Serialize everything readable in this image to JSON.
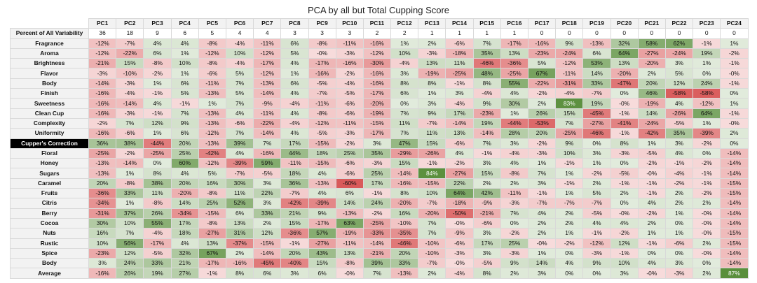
{
  "chart_data": {
    "type": "table",
    "title": "PCA by all but Total Cupping Score",
    "columns": [
      "PC1",
      "PC2",
      "PC3",
      "PC4",
      "PC5",
      "PC6",
      "PC7",
      "PC8",
      "PC9",
      "PC10",
      "PC11",
      "PC12",
      "PC13",
      "PC14",
      "PC15",
      "PC16",
      "PC17",
      "PC18",
      "PC19",
      "PC20",
      "PC21",
      "PC22",
      "PC23",
      "PC24"
    ],
    "rows": [
      {
        "label": "Percent of All Variability",
        "kind": "plain",
        "values": [
          "36",
          "18",
          "9",
          "6",
          "5",
          "4",
          "4",
          "3",
          "3",
          "3",
          "2",
          "2",
          "1",
          "1",
          "1",
          "1",
          "0",
          "0",
          "0",
          "0",
          "0",
          "0",
          "0",
          "0"
        ]
      },
      {
        "label": "Fragrance",
        "kind": "heat",
        "values": [
          "-12%",
          "-7%",
          "4%",
          "4%",
          "-8%",
          "-4%",
          "-11%",
          "6%",
          "-8%",
          "-11%",
          "-16%",
          "1%",
          "2%",
          "-6%",
          "7%",
          "-17%",
          "-16%",
          "9%",
          "-13%",
          "32%",
          "58%",
          "62%",
          "-1%",
          "1%"
        ]
      },
      {
        "label": "Aroma",
        "kind": "heat",
        "values": [
          "-12%",
          "-22%",
          "6%",
          "1%",
          "-12%",
          "10%",
          "-12%",
          "5%",
          "-0%",
          "-3%",
          "-12%",
          "10%",
          "-3%",
          "-18%",
          "35%",
          "13%",
          "-23%",
          "-24%",
          "6%",
          "64%",
          "-27%",
          "-24%",
          "19%",
          "-2%"
        ]
      },
      {
        "label": "Brightness",
        "kind": "heat",
        "values": [
          "-21%",
          "15%",
          "-8%",
          "10%",
          "-8%",
          "-4%",
          "-17%",
          "4%",
          "-17%",
          "-16%",
          "-30%",
          "-4%",
          "13%",
          "11%",
          "-46%",
          "-36%",
          "5%",
          "-12%",
          "53%",
          "13%",
          "-20%",
          "3%",
          "1%",
          "-1%"
        ]
      },
      {
        "label": "Flavor",
        "kind": "heat",
        "values": [
          "-3%",
          "-10%",
          "-2%",
          "1%",
          "-6%",
          "5%",
          "-12%",
          "1%",
          "-16%",
          "-2%",
          "-16%",
          "3%",
          "-19%",
          "-25%",
          "48%",
          "-25%",
          "67%",
          "-11%",
          "14%",
          "-20%",
          "2%",
          "5%",
          "0%",
          "-0%"
        ]
      },
      {
        "label": "Body",
        "kind": "heat",
        "values": [
          "-14%",
          "-3%",
          "1%",
          "6%",
          "-11%",
          "7%",
          "-13%",
          "6%",
          "-5%",
          "-4%",
          "-16%",
          "8%",
          "8%",
          "-1%",
          "8%",
          "55%",
          "-22%",
          "-31%",
          "33%",
          "-47%",
          "20%",
          "12%",
          "24%",
          "-1%"
        ]
      },
      {
        "label": "Finish",
        "kind": "heat",
        "values": [
          "-16%",
          "-4%",
          "-1%",
          "5%",
          "-13%",
          "5%",
          "-14%",
          "4%",
          "-7%",
          "-5%",
          "-17%",
          "6%",
          "1%",
          "3%",
          "-4%",
          "4%",
          "-2%",
          "-4%",
          "-7%",
          "0%",
          "46%",
          "-58%",
          "-58%",
          "0%"
        ]
      },
      {
        "label": "Sweetness",
        "kind": "heat",
        "values": [
          "-16%",
          "-14%",
          "4%",
          "-1%",
          "1%",
          "7%",
          "-9%",
          "-4%",
          "-11%",
          "-6%",
          "-20%",
          "0%",
          "3%",
          "-4%",
          "9%",
          "30%",
          "2%",
          "83%",
          "19%",
          "-0%",
          "-19%",
          "4%",
          "-12%",
          "1%"
        ]
      },
      {
        "label": "Clean Cup",
        "kind": "heat",
        "values": [
          "-16%",
          "-3%",
          "-1%",
          "7%",
          "-13%",
          "4%",
          "-11%",
          "4%",
          "-8%",
          "-6%",
          "-19%",
          "7%",
          "9%",
          "17%",
          "-23%",
          "1%",
          "26%",
          "15%",
          "-45%",
          "-1%",
          "14%",
          "-26%",
          "64%",
          "-1%"
        ]
      },
      {
        "label": "Complexity",
        "kind": "heat",
        "values": [
          "-2%",
          "7%",
          "12%",
          "9%",
          "-13%",
          "-6%",
          "-22%",
          "-4%",
          "-12%",
          "-11%",
          "-15%",
          "11%",
          "-7%",
          "-14%",
          "19%",
          "-44%",
          "-53%",
          "7%",
          "-27%",
          "-41%",
          "-24%",
          "-5%",
          "1%",
          "-0%"
        ]
      },
      {
        "label": "Uniformity",
        "kind": "heat",
        "values": [
          "-16%",
          "-6%",
          "1%",
          "6%",
          "-12%",
          "7%",
          "-14%",
          "4%",
          "-5%",
          "-3%",
          "-17%",
          "7%",
          "11%",
          "13%",
          "-14%",
          "28%",
          "20%",
          "-25%",
          "-46%",
          "-1%",
          "-42%",
          "35%",
          "-39%",
          "2%"
        ]
      },
      {
        "label": "Cupper's Correction",
        "kind": "heat",
        "dark": true,
        "values": [
          "36%",
          "38%",
          "-44%",
          "20%",
          "-13%",
          "39%",
          "7%",
          "17%",
          "-15%",
          "-2%",
          "3%",
          "47%",
          "15%",
          "-6%",
          "7%",
          "3%",
          "-2%",
          "9%",
          "0%",
          "8%",
          "1%",
          "3%",
          "-2%",
          "0%"
        ]
      },
      {
        "label": "Floral",
        "kind": "heat",
        "values": [
          "-25%",
          "-2%",
          "-25%",
          "25%",
          "-42%",
          "4%",
          "-16%",
          "44%",
          "18%",
          "25%",
          "35%",
          "-29%",
          "-26%",
          "4%",
          "-1%",
          "-4%",
          "-3%",
          "10%",
          "3%",
          "-3%",
          "-5%",
          "4%",
          "0%",
          "-14%"
        ]
      },
      {
        "label": "Honey",
        "kind": "heat",
        "values": [
          "-13%",
          "-14%",
          "0%",
          "60%",
          "-12%",
          "-39%",
          "59%",
          "-11%",
          "-15%",
          "-6%",
          "-3%",
          "15%",
          "-1%",
          "-2%",
          "3%",
          "4%",
          "1%",
          "-1%",
          "1%",
          "0%",
          "-2%",
          "-1%",
          "-2%",
          "-14%"
        ]
      },
      {
        "label": "Sugars",
        "kind": "heat",
        "values": [
          "-13%",
          "1%",
          "8%",
          "4%",
          "5%",
          "-7%",
          "-5%",
          "18%",
          "4%",
          "-6%",
          "25%",
          "-14%",
          "84%",
          "-27%",
          "15%",
          "-8%",
          "7%",
          "1%",
          "-2%",
          "-5%",
          "-0%",
          "-4%",
          "-1%",
          "-14%"
        ]
      },
      {
        "label": "Caramel",
        "kind": "heat",
        "values": [
          "20%",
          "-8%",
          "38%",
          "20%",
          "16%",
          "30%",
          "3%",
          "36%",
          "-13%",
          "-60%",
          "17%",
          "-16%",
          "-15%",
          "22%",
          "2%",
          "2%",
          "3%",
          "-1%",
          "2%",
          "-1%",
          "-1%",
          "-2%",
          "-1%",
          "-15%"
        ]
      },
      {
        "label": "Fruits",
        "kind": "heat",
        "values": [
          "-36%",
          "33%",
          "11%",
          "-20%",
          "-8%",
          "11%",
          "22%",
          "-7%",
          "4%",
          "6%",
          "-1%",
          "8%",
          "10%",
          "64%",
          "42%",
          "-11%",
          "-1%",
          "1%",
          "5%",
          "2%",
          "-1%",
          "2%",
          "-2%",
          "-15%"
        ]
      },
      {
        "label": "Citris",
        "kind": "heat",
        "values": [
          "-34%",
          "1%",
          "-8%",
          "14%",
          "25%",
          "52%",
          "3%",
          "-42%",
          "-39%",
          "14%",
          "24%",
          "-20%",
          "-7%",
          "-18%",
          "-9%",
          "-3%",
          "-7%",
          "-7%",
          "-7%",
          "0%",
          "4%",
          "2%",
          "2%",
          "-14%"
        ]
      },
      {
        "label": "Berry",
        "kind": "heat",
        "values": [
          "-31%",
          "37%",
          "26%",
          "-34%",
          "-15%",
          "6%",
          "33%",
          "21%",
          "9%",
          "-13%",
          "-2%",
          "16%",
          "-20%",
          "-50%",
          "-21%",
          "7%",
          "4%",
          "2%",
          "-5%",
          "-0%",
          "-2%",
          "1%",
          "-0%",
          "-14%"
        ]
      },
      {
        "label": "Cocoa",
        "kind": "heat",
        "values": [
          "30%",
          "10%",
          "55%",
          "17%",
          "-8%",
          "13%",
          "2%",
          "15%",
          "-17%",
          "63%",
          "-25%",
          "-10%",
          "7%",
          "-0%",
          "-6%",
          "0%",
          "2%",
          "2%",
          "4%",
          "4%",
          "2%",
          "0%",
          "-0%",
          "-14%"
        ]
      },
      {
        "label": "Nuts",
        "kind": "heat",
        "values": [
          "16%",
          "7%",
          "-4%",
          "18%",
          "-27%",
          "31%",
          "12%",
          "-36%",
          "57%",
          "-19%",
          "-33%",
          "-35%",
          "7%",
          "-9%",
          "3%",
          "-2%",
          "2%",
          "1%",
          "-1%",
          "-2%",
          "1%",
          "1%",
          "-0%",
          "-15%"
        ]
      },
      {
        "label": "Rustic",
        "kind": "heat",
        "values": [
          "10%",
          "56%",
          "-17%",
          "4%",
          "13%",
          "-37%",
          "-15%",
          "-1%",
          "-27%",
          "-11%",
          "-14%",
          "-46%",
          "-10%",
          "-6%",
          "17%",
          "25%",
          "-0%",
          "-2%",
          "-12%",
          "12%",
          "-1%",
          "-6%",
          "2%",
          "-15%"
        ]
      },
      {
        "label": "Spice",
        "kind": "heat",
        "values": [
          "-23%",
          "12%",
          "-5%",
          "32%",
          "67%",
          "2%",
          "-14%",
          "20%",
          "43%",
          "13%",
          "-21%",
          "20%",
          "-10%",
          "-3%",
          "3%",
          "-3%",
          "1%",
          "0%",
          "-3%",
          "-1%",
          "0%",
          "0%",
          "-0%",
          "-14%"
        ]
      },
      {
        "label": "Body",
        "kind": "heat",
        "values": [
          "3%",
          "24%",
          "33%",
          "21%",
          "-17%",
          "-16%",
          "-45%",
          "-40%",
          "15%",
          "-8%",
          "39%",
          "33%",
          "-7%",
          "-0%",
          "-5%",
          "9%",
          "14%",
          "4%",
          "9%",
          "10%",
          "4%",
          "3%",
          "0%",
          "-14%"
        ]
      },
      {
        "label": "Average",
        "kind": "heat",
        "values": [
          "-16%",
          "26%",
          "19%",
          "27%",
          "-1%",
          "8%",
          "6%",
          "3%",
          "6%",
          "-0%",
          "7%",
          "-13%",
          "2%",
          "-4%",
          "8%",
          "2%",
          "3%",
          "0%",
          "0%",
          "3%",
          "-0%",
          "-3%",
          "2%",
          "87%"
        ]
      }
    ],
    "colors": {
      "positive": "#5a8f3c",
      "negative": "#d95a5a",
      "neutral": "#ffffff",
      "grid": "#d9d9d9"
    }
  }
}
